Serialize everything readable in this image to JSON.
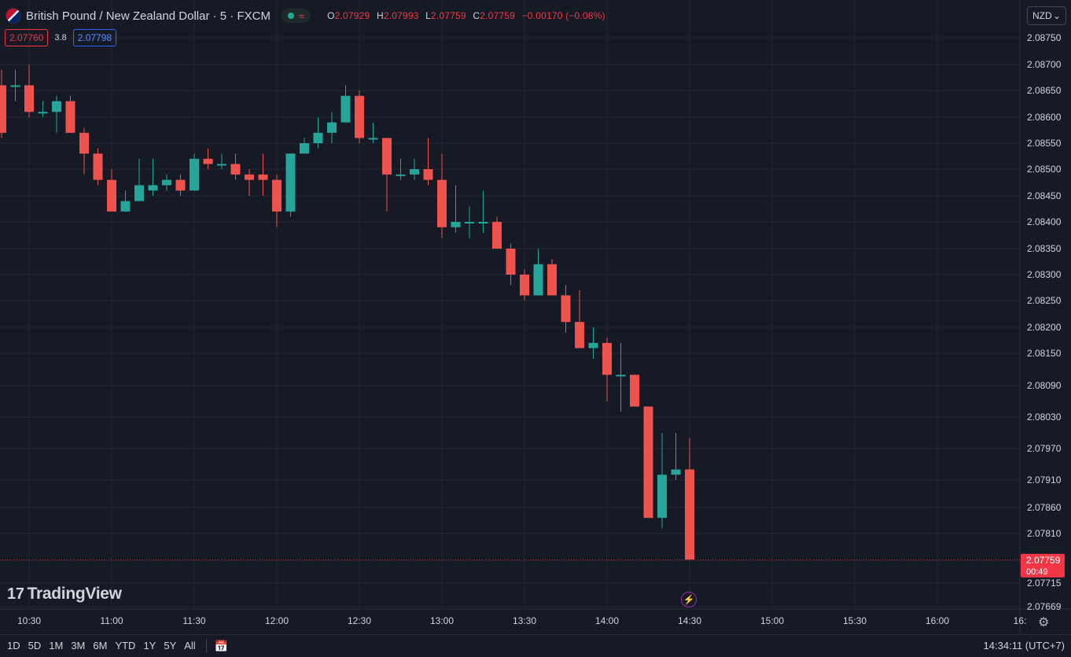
{
  "header": {
    "symbol_title": "British Pound / New Zealand Dollar · 5 · FXCM",
    "status_wave": "≈",
    "ohlc": {
      "o_label": "O",
      "o": "2.07929",
      "h_label": "H",
      "h": "2.07993",
      "l_label": "L",
      "l": "2.07759",
      "c_label": "C",
      "c": "2.07759",
      "change": "−0.00170 (−0.08%)"
    },
    "sell_price": "2.07760",
    "spread": "3.8",
    "buy_price": "2.07798",
    "currency": "NZD",
    "currency_chevron": "⌄"
  },
  "logo": {
    "mark": "17",
    "text": "TradingView"
  },
  "bottom": {
    "ranges": [
      "1D",
      "5D",
      "1M",
      "3M",
      "6M",
      "YTD",
      "1Y",
      "5Y",
      "All"
    ],
    "clock": "14:34:11 (UTC+7)"
  },
  "colors": {
    "up": "#26a69a",
    "down": "#ef5350",
    "background": "#161a25",
    "grid": "#232632",
    "text": "#d1d4dc",
    "price_label_bg": "#f23645"
  },
  "chart_data": {
    "type": "candlestick",
    "interval": "5",
    "currency": "NZD",
    "x_tick_labels": [
      "10:30",
      "11:00",
      "11:30",
      "12:00",
      "12:30",
      "13:00",
      "13:30",
      "14:00",
      "14:30",
      "15:00",
      "15:30",
      "16:00",
      "16:"
    ],
    "y_tick_labels": [
      "2.08750",
      "2.08700",
      "2.08650",
      "2.08600",
      "2.08550",
      "2.08500",
      "2.08450",
      "2.08400",
      "2.08350",
      "2.08300",
      "2.08250",
      "2.08200",
      "2.08150",
      "2.08090",
      "2.08030",
      "2.07970",
      "2.07910",
      "2.07860",
      "2.07810",
      "2.07715",
      "2.07669"
    ],
    "y_ticks": [
      2.0875,
      2.087,
      2.0865,
      2.086,
      2.0855,
      2.085,
      2.0845,
      2.084,
      2.0835,
      2.083,
      2.0825,
      2.082,
      2.0815,
      2.0809,
      2.0803,
      2.0797,
      2.0791,
      2.0786,
      2.0781,
      2.07715,
      2.07669
    ],
    "last_price": "2.07759",
    "countdown": "00:49",
    "candles": [
      {
        "t": "10:20",
        "o": 2.0866,
        "h": 2.0869,
        "l": 2.0856,
        "c": 2.0857
      },
      {
        "t": "10:25",
        "o": 2.0866,
        "h": 2.0869,
        "l": 2.0863,
        "c": 2.0866
      },
      {
        "t": "10:30",
        "o": 2.0866,
        "h": 2.087,
        "l": 2.086,
        "c": 2.0861
      },
      {
        "t": "10:35",
        "o": 2.0861,
        "h": 2.0863,
        "l": 2.086,
        "c": 2.0861
      },
      {
        "t": "10:40",
        "o": 2.0861,
        "h": 2.0864,
        "l": 2.0857,
        "c": 2.0863
      },
      {
        "t": "10:45",
        "o": 2.0863,
        "h": 2.0864,
        "l": 2.0857,
        "c": 2.0857
      },
      {
        "t": "10:50",
        "o": 2.0857,
        "h": 2.0858,
        "l": 2.0849,
        "c": 2.0853
      },
      {
        "t": "10:55",
        "o": 2.0853,
        "h": 2.0854,
        "l": 2.0847,
        "c": 2.0848
      },
      {
        "t": "11:00",
        "o": 2.0848,
        "h": 2.085,
        "l": 2.0842,
        "c": 2.0842
      },
      {
        "t": "11:05",
        "o": 2.0842,
        "h": 2.0846,
        "l": 2.0842,
        "c": 2.0844
      },
      {
        "t": "11:10",
        "o": 2.0844,
        "h": 2.0852,
        "l": 2.0844,
        "c": 2.0847
      },
      {
        "t": "11:15",
        "o": 2.0846,
        "h": 2.0852,
        "l": 2.0845,
        "c": 2.0847
      },
      {
        "t": "11:20",
        "o": 2.0847,
        "h": 2.0849,
        "l": 2.0846,
        "c": 2.0848
      },
      {
        "t": "11:25",
        "o": 2.0848,
        "h": 2.0849,
        "l": 2.0845,
        "c": 2.0846
      },
      {
        "t": "11:30",
        "o": 2.0846,
        "h": 2.0853,
        "l": 2.0846,
        "c": 2.0852
      },
      {
        "t": "11:35",
        "o": 2.0852,
        "h": 2.0854,
        "l": 2.085,
        "c": 2.0851
      },
      {
        "t": "11:40",
        "o": 2.0851,
        "h": 2.0853,
        "l": 2.085,
        "c": 2.0851
      },
      {
        "t": "11:45",
        "o": 2.0851,
        "h": 2.0853,
        "l": 2.0848,
        "c": 2.0849
      },
      {
        "t": "11:50",
        "o": 2.0849,
        "h": 2.085,
        "l": 2.0845,
        "c": 2.0848
      },
      {
        "t": "11:55",
        "o": 2.0849,
        "h": 2.0853,
        "l": 2.0845,
        "c": 2.0848
      },
      {
        "t": "12:00",
        "o": 2.0848,
        "h": 2.0849,
        "l": 2.0839,
        "c": 2.0842
      },
      {
        "t": "12:05",
        "o": 2.0842,
        "h": 2.0853,
        "l": 2.0841,
        "c": 2.0853
      },
      {
        "t": "12:10",
        "o": 2.0853,
        "h": 2.0856,
        "l": 2.0853,
        "c": 2.0855
      },
      {
        "t": "12:15",
        "o": 2.0855,
        "h": 2.086,
        "l": 2.0854,
        "c": 2.0857
      },
      {
        "t": "12:20",
        "o": 2.0857,
        "h": 2.0861,
        "l": 2.0855,
        "c": 2.0859
      },
      {
        "t": "12:25",
        "o": 2.0859,
        "h": 2.0866,
        "l": 2.0859,
        "c": 2.0864
      },
      {
        "t": "12:30",
        "o": 2.0864,
        "h": 2.0865,
        "l": 2.0855,
        "c": 2.0856
      },
      {
        "t": "12:35",
        "o": 2.0856,
        "h": 2.0859,
        "l": 2.0855,
        "c": 2.0856
      },
      {
        "t": "12:40",
        "o": 2.0856,
        "h": 2.0856,
        "l": 2.0842,
        "c": 2.0849
      },
      {
        "t": "12:45",
        "o": 2.0849,
        "h": 2.0852,
        "l": 2.0848,
        "c": 2.0849
      },
      {
        "t": "12:50",
        "o": 2.0849,
        "h": 2.0852,
        "l": 2.0848,
        "c": 2.085
      },
      {
        "t": "12:55",
        "o": 2.085,
        "h": 2.0856,
        "l": 2.0847,
        "c": 2.0848
      },
      {
        "t": "13:00",
        "o": 2.0848,
        "h": 2.0853,
        "l": 2.0837,
        "c": 2.0839
      },
      {
        "t": "13:05",
        "o": 2.0839,
        "h": 2.0847,
        "l": 2.0838,
        "c": 2.084
      },
      {
        "t": "13:10",
        "o": 2.084,
        "h": 2.0843,
        "l": 2.0837,
        "c": 2.084
      },
      {
        "t": "13:15",
        "o": 2.084,
        "h": 2.0846,
        "l": 2.0838,
        "c": 2.084
      },
      {
        "t": "13:20",
        "o": 2.084,
        "h": 2.0841,
        "l": 2.0835,
        "c": 2.0835
      },
      {
        "t": "13:25",
        "o": 2.0835,
        "h": 2.0836,
        "l": 2.0828,
        "c": 2.083
      },
      {
        "t": "13:30",
        "o": 2.083,
        "h": 2.0831,
        "l": 2.0825,
        "c": 2.0826
      },
      {
        "t": "13:35",
        "o": 2.0826,
        "h": 2.0835,
        "l": 2.0826,
        "c": 2.0832
      },
      {
        "t": "13:40",
        "o": 2.0832,
        "h": 2.0833,
        "l": 2.0826,
        "c": 2.0826
      },
      {
        "t": "13:45",
        "o": 2.0826,
        "h": 2.0828,
        "l": 2.0819,
        "c": 2.0821
      },
      {
        "t": "13:50",
        "o": 2.0821,
        "h": 2.0827,
        "l": 2.0816,
        "c": 2.0816
      },
      {
        "t": "13:55",
        "o": 2.0816,
        "h": 2.082,
        "l": 2.0814,
        "c": 2.0817
      },
      {
        "t": "14:00",
        "o": 2.0817,
        "h": 2.0818,
        "l": 2.0806,
        "c": 2.0811
      },
      {
        "t": "14:05",
        "o": 2.0811,
        "h": 2.0817,
        "l": 2.0804,
        "c": 2.0811
      },
      {
        "t": "14:10",
        "o": 2.0811,
        "h": 2.0811,
        "l": 2.0805,
        "c": 2.0805
      },
      {
        "t": "14:15",
        "o": 2.0805,
        "h": 2.0805,
        "l": 2.0784,
        "c": 2.0784
      },
      {
        "t": "14:20",
        "o": 2.0784,
        "h": 2.08,
        "l": 2.0782,
        "c": 2.0792
      },
      {
        "t": "14:25",
        "o": 2.0792,
        "h": 2.08,
        "l": 2.0791,
        "c": 2.0793
      },
      {
        "t": "14:30",
        "o": 2.0793,
        "h": 2.0799,
        "l": 2.0776,
        "c": 2.0776
      }
    ]
  }
}
